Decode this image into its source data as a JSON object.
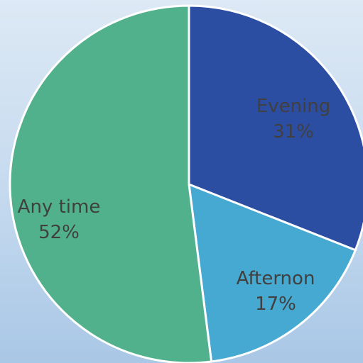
{
  "chart_data": {
    "type": "pie",
    "start_angle_deg": 0,
    "direction": "clockwise",
    "slices": [
      {
        "label": "Evening",
        "percent_label": "31%",
        "value": 31,
        "color": "#2b4da2"
      },
      {
        "label": "Afternon",
        "percent_label": "17%",
        "value": 17,
        "color": "#46a9d1"
      },
      {
        "label": "Any time",
        "percent_label": "52%",
        "value": 52,
        "color": "#52b18d"
      }
    ]
  }
}
